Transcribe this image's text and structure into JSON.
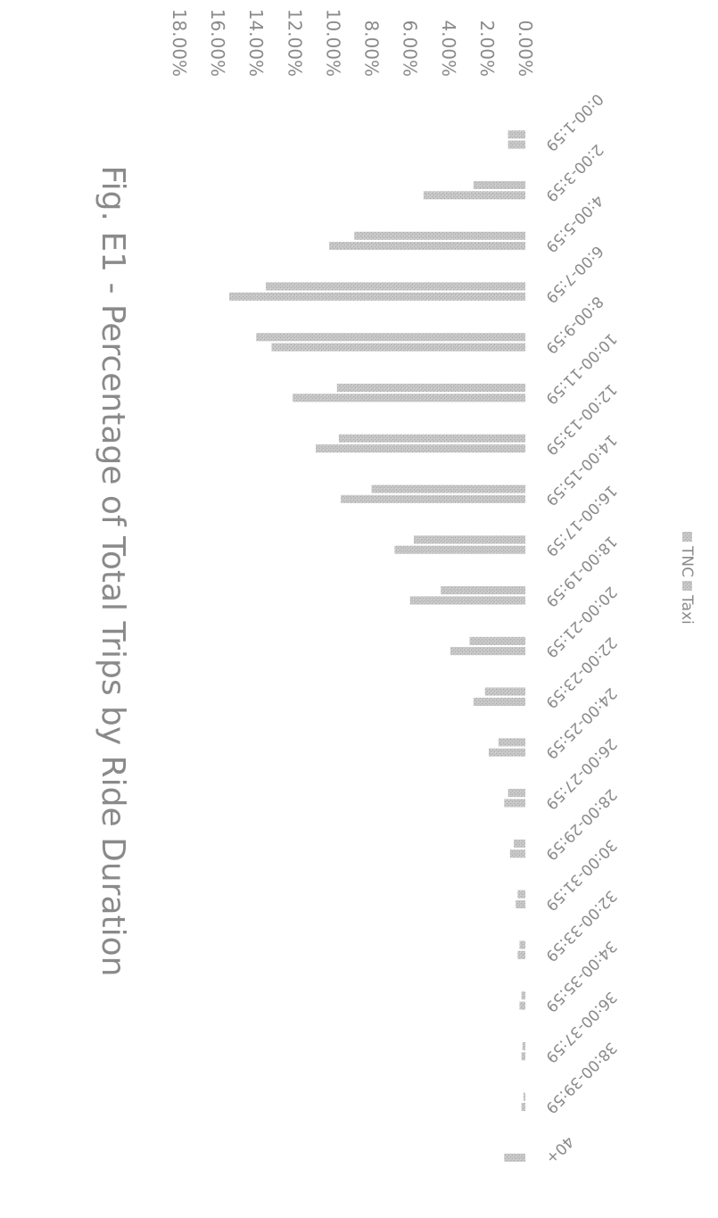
{
  "chart_data": {
    "type": "bar",
    "title": "Fig. E1 - Percentage of Total Trips by Ride Duration",
    "categories": [
      "0:00-1:59",
      "2:00-3:59",
      "4:00-5:59",
      "6:00-7:59",
      "8:00-9:59",
      "10:00-11:59",
      "12:00-13:59",
      "14:00-15:59",
      "16:00-17:59",
      "18:00-19:59",
      "20:00-21:59",
      "22:00-23:59",
      "24:00-25:59",
      "26:00-27:59",
      "28:00-29:59",
      "30:00-31:59",
      "32:00-33:59",
      "34:00-35:59",
      "36:00-37:59",
      "38:00-39:59",
      "40+"
    ],
    "series": [
      {
        "name": "TNC",
        "values": [
          0.9,
          2.7,
          8.9,
          13.5,
          14.0,
          9.8,
          9.7,
          8.0,
          5.8,
          4.4,
          2.9,
          2.1,
          1.4,
          0.9,
          0.6,
          0.4,
          0.3,
          0.2,
          0.15,
          0.1,
          0.0
        ]
      },
      {
        "name": "Taxi",
        "values": [
          0.9,
          5.3,
          10.2,
          15.4,
          13.2,
          12.1,
          10.9,
          9.6,
          6.8,
          6.0,
          3.9,
          2.7,
          1.9,
          1.1,
          0.8,
          0.5,
          0.4,
          0.3,
          0.2,
          0.2,
          1.1
        ]
      }
    ],
    "y_ticks": [
      "0.00%",
      "2.00%",
      "4.00%",
      "6.00%",
      "8.00%",
      "10.00%",
      "12.00%",
      "14.00%",
      "16.00%",
      "18.00%"
    ],
    "ylim": [
      0,
      18
    ],
    "grid": false,
    "legend_position": "bottom",
    "orientation": "rotated 90 degrees clockwise",
    "colors": {
      "bar": "#bdbdbd",
      "text": "#8a8a8a",
      "title": "#8a8a8a",
      "background": "#ffffff"
    }
  }
}
